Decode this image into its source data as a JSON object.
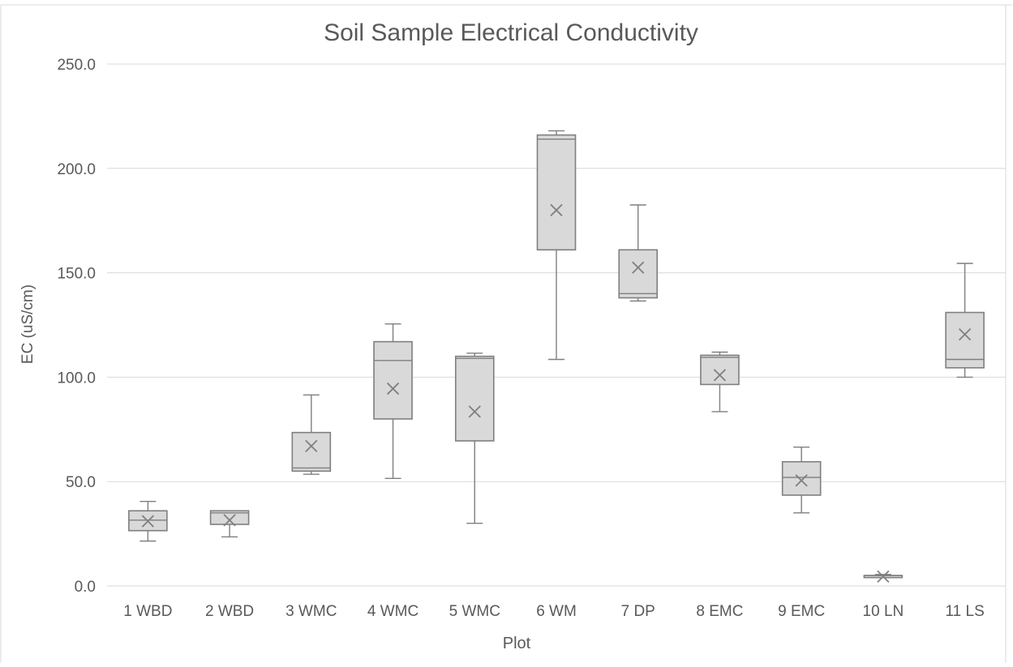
{
  "chart_data": {
    "type": "boxplot",
    "title": "Soil Sample Electrical Conductivity",
    "xlabel": "Plot",
    "ylabel": "EC (uS/cm)",
    "ylim": [
      0,
      250
    ],
    "y_ticks": [
      "0.0",
      "50.0",
      "100.0",
      "150.0",
      "200.0",
      "250.0"
    ],
    "y_tick_values": [
      0,
      50,
      100,
      150,
      200,
      250
    ],
    "grid": true,
    "legend": "none",
    "colors": {
      "box_fill": "#d9d9d9",
      "box_stroke": "#7f7f7f",
      "grid": "#d9d9d9",
      "text": "#595959"
    },
    "categories": [
      "1 WBD",
      "2 WBD",
      "3 WMC",
      "4 WMC",
      "5 WMC",
      "6 WM",
      "7 DP",
      "8 EMC",
      "9 EMC",
      "10 LN",
      "11 LS"
    ],
    "boxes": [
      {
        "min": 21.5,
        "q1": 26.5,
        "median": 31.5,
        "q3": 36.0,
        "max": 40.5,
        "mean": 31.0
      },
      {
        "min": 23.5,
        "q1": 29.5,
        "median": 35.0,
        "q3": 36.0,
        "max": 36.0,
        "mean": 31.5
      },
      {
        "min": 53.5,
        "q1": 55.0,
        "median": 56.5,
        "q3": 73.5,
        "max": 91.5,
        "mean": 67.0
      },
      {
        "min": 51.5,
        "q1": 80.0,
        "median": 108.0,
        "q3": 117.0,
        "max": 125.5,
        "mean": 94.5
      },
      {
        "min": 30.0,
        "q1": 69.5,
        "median": 109.0,
        "q3": 110.0,
        "max": 111.5,
        "mean": 83.5
      },
      {
        "min": 108.5,
        "q1": 161.0,
        "median": 214.0,
        "q3": 216.0,
        "max": 218.0,
        "mean": 180.0
      },
      {
        "min": 136.5,
        "q1": 138.0,
        "median": 140.0,
        "q3": 161.0,
        "max": 182.5,
        "mean": 152.5
      },
      {
        "min": 83.5,
        "q1": 96.5,
        "median": 109.5,
        "q3": 110.5,
        "max": 112.0,
        "mean": 101.0
      },
      {
        "min": 35.0,
        "q1": 43.5,
        "median": 52.0,
        "q3": 59.5,
        "max": 66.5,
        "mean": 50.5
      },
      {
        "min": 4.0,
        "q1": 4.0,
        "median": 5.0,
        "q3": 5.0,
        "max": 5.5,
        "mean": 4.5
      },
      {
        "min": 100.0,
        "q1": 104.5,
        "median": 108.5,
        "q3": 131.0,
        "max": 154.5,
        "mean": 120.5
      }
    ]
  }
}
